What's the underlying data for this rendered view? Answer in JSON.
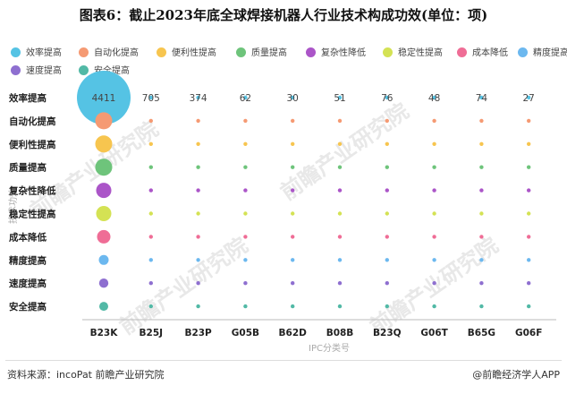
{
  "title": "图表6：截止2023年底全球焊接机器人行业技术构成功效(单位：项)",
  "legend": [
    {
      "name": "效率提高",
      "color": "#55c3e4"
    },
    {
      "name": "自动化提高",
      "color": "#f59a73"
    },
    {
      "name": "便利性提高",
      "color": "#f7c54f"
    },
    {
      "name": "质量提高",
      "color": "#6ec47b"
    },
    {
      "name": "复杂性降低",
      "color": "#ab55c8"
    },
    {
      "name": "稳定性提高",
      "color": "#d4e254"
    },
    {
      "name": "成本降低",
      "color": "#ef6d96"
    },
    {
      "name": "精度提高",
      "color": "#6cb8ef"
    },
    {
      "name": "速度提高",
      "color": "#8e6fd0"
    },
    {
      "name": "安全提高",
      "color": "#52b9a6"
    }
  ],
  "chart_data": {
    "type": "scatter",
    "subtype": "bubble-matrix",
    "xlabel": "IPC分类号",
    "ylabel": "技术功效",
    "x_categories": [
      "B23K",
      "B25J",
      "B23P",
      "G05B",
      "B62D",
      "B08B",
      "B23Q",
      "G06T",
      "B65G",
      "G06F"
    ],
    "y_categories": [
      "效率提高",
      "自动化提高",
      "便利性提高",
      "质量提高",
      "复杂性降低",
      "稳定性提高",
      "成本降低",
      "精度提高",
      "速度提高",
      "安全提高"
    ],
    "labeled_row": "效率提高",
    "labeled_values": [
      4411,
      705,
      374,
      62,
      30,
      51,
      76,
      48,
      74,
      27
    ]
  },
  "watermark": "前瞻产业研究院",
  "footer": {
    "source": "资料来源：incoPat 前瞻产业研究院",
    "brand": "@前瞻经济学人APP"
  }
}
